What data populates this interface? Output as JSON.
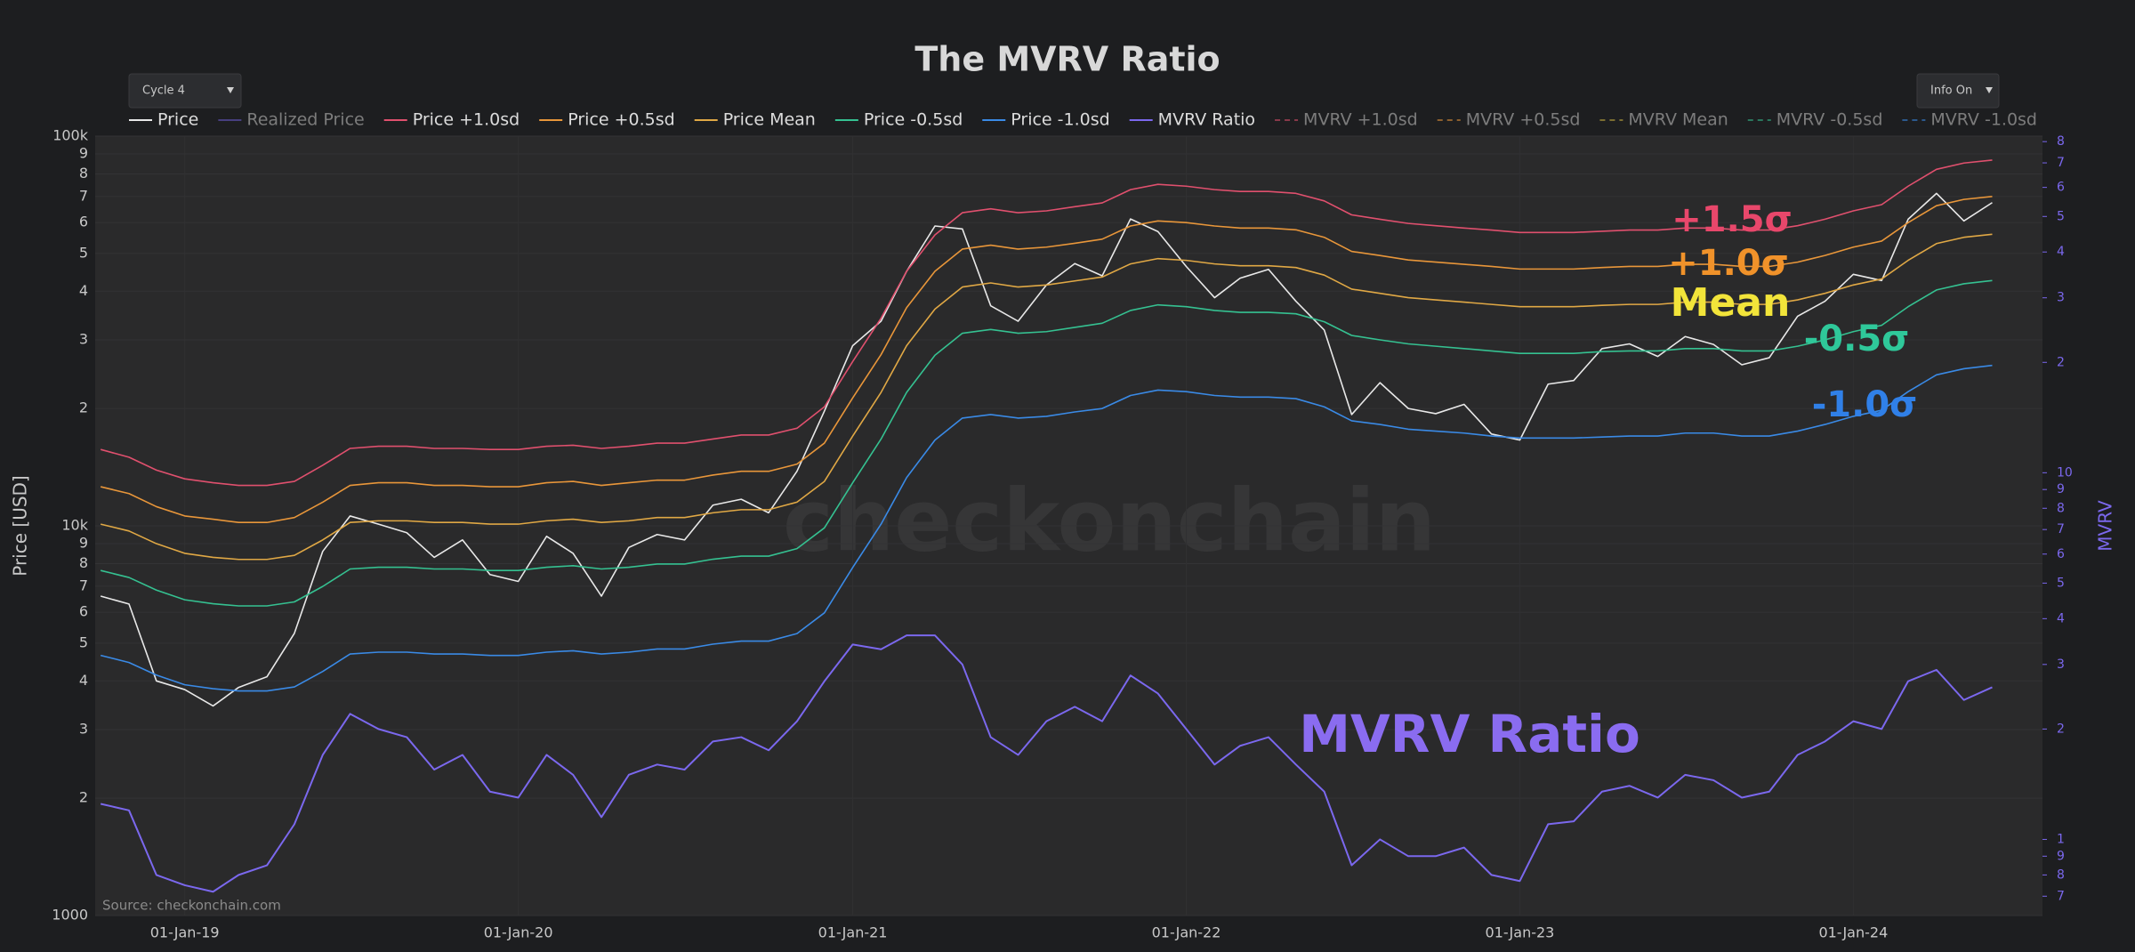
{
  "controls": {
    "cycle": "Cycle 4",
    "info": "Info On"
  },
  "chart_data": {
    "type": "line",
    "title": "The MVRV Ratio",
    "x": [
      "2018-10-01",
      "2018-11-01",
      "2018-12-01",
      "2019-01-01",
      "2019-02-01",
      "2019-03-01",
      "2019-04-01",
      "2019-05-01",
      "2019-06-01",
      "2019-07-01",
      "2019-08-01",
      "2019-09-01",
      "2019-10-01",
      "2019-11-01",
      "2019-12-01",
      "2020-01-01",
      "2020-02-01",
      "2020-03-01",
      "2020-04-01",
      "2020-05-01",
      "2020-06-01",
      "2020-07-01",
      "2020-08-01",
      "2020-09-01",
      "2020-10-01",
      "2020-11-01",
      "2020-12-01",
      "2021-01-01",
      "2021-02-01",
      "2021-03-01",
      "2021-04-01",
      "2021-05-01",
      "2021-06-01",
      "2021-07-01",
      "2021-08-01",
      "2021-09-01",
      "2021-10-01",
      "2021-11-01",
      "2021-12-01",
      "2022-01-01",
      "2022-02-01",
      "2022-03-01",
      "2022-04-01",
      "2022-05-01",
      "2022-06-01",
      "2022-07-01",
      "2022-08-01",
      "2022-09-01",
      "2022-10-01",
      "2022-11-01",
      "2022-12-01",
      "2023-01-01",
      "2023-02-01",
      "2023-03-01",
      "2023-04-01",
      "2023-05-01",
      "2023-06-01",
      "2023-07-01",
      "2023-08-01",
      "2023-09-01",
      "2023-10-01",
      "2023-11-01",
      "2023-12-01",
      "2024-01-01",
      "2024-02-01",
      "2024-03-01",
      "2024-04-01",
      "2024-05-01",
      "2024-06-01"
    ],
    "xlim": [
      "2018-09-25",
      "2024-07-26"
    ],
    "xticks": [
      {
        "value": "2019-01-01",
        "label": "01-Jan-19"
      },
      {
        "value": "2020-01-01",
        "label": "01-Jan-20"
      },
      {
        "value": "2021-01-01",
        "label": "01-Jan-21"
      },
      {
        "value": "2022-01-01",
        "label": "01-Jan-22"
      },
      {
        "value": "2023-01-01",
        "label": "01-Jan-23"
      },
      {
        "value": "2024-01-01",
        "label": "01-Jan-24"
      }
    ],
    "y_label": "Price [USD]",
    "y_scale": "log",
    "ylim": [
      1000,
      100000
    ],
    "yticks": [
      1000,
      {
        "value": 2000,
        "label": "2"
      },
      {
        "value": 3000,
        "label": "3"
      },
      {
        "value": 4000,
        "label": "4"
      },
      {
        "value": 5000,
        "label": "5"
      },
      {
        "value": 6000,
        "label": "6"
      },
      {
        "value": 7000,
        "label": "7"
      },
      {
        "value": 8000,
        "label": "8"
      },
      {
        "value": 9000,
        "label": "9"
      },
      {
        "value": 10000,
        "label": "10k"
      },
      {
        "value": 20000,
        "label": "2"
      },
      {
        "value": 30000,
        "label": "3"
      },
      {
        "value": 40000,
        "label": "4"
      },
      {
        "value": 50000,
        "label": "5"
      },
      {
        "value": 60000,
        "label": "6"
      },
      {
        "value": 70000,
        "label": "7"
      },
      {
        "value": 80000,
        "label": "8"
      },
      {
        "value": 90000,
        "label": "9"
      },
      {
        "value": 100000,
        "label": "100k"
      }
    ],
    "y2_label": "MVRV",
    "y2_scale": "log",
    "y2lim": [
      0.62,
      82.8
    ],
    "y2_color": "#7b68ee",
    "y2ticks": [
      {
        "value": 0.7,
        "label": "7"
      },
      {
        "value": 0.8,
        "label": "8"
      },
      {
        "value": 0.9,
        "label": "9"
      },
      1,
      2,
      3,
      4,
      5,
      6,
      7,
      8,
      9,
      10,
      {
        "value": 20,
        "label": "2"
      },
      {
        "value": 30,
        "label": "3"
      },
      {
        "value": 40,
        "label": "4"
      },
      {
        "value": 50,
        "label": "5"
      },
      {
        "value": 60,
        "label": "6"
      },
      {
        "value": 70,
        "label": "7"
      },
      {
        "value": 80,
        "label": "8"
      }
    ],
    "grid": true,
    "series": [
      {
        "name": "Price",
        "color": "#e8e8e8",
        "values": [
          6600,
          6300,
          4000,
          3800,
          3450,
          3850,
          4100,
          5300,
          8600,
          10600,
          10100,
          9600,
          8300,
          9200,
          7500,
          7200,
          9400,
          8500,
          6600,
          8800,
          9500,
          9200,
          11300,
          11700,
          10800,
          13800,
          19700,
          29000,
          33500,
          45000,
          58800,
          57800,
          36700,
          33500,
          41500,
          47100,
          43800,
          61300,
          56900,
          46300,
          38500,
          43200,
          45500,
          37700,
          31800,
          19300,
          23300,
          20000,
          19400,
          20500,
          17200,
          16600,
          23100,
          23600,
          28500,
          29300,
          27200,
          30600,
          29200,
          25900,
          27000,
          34500,
          37700,
          44200,
          42600,
          61200,
          71300,
          60600,
          67500
        ]
      },
      {
        "name": "Realized Price",
        "color": "#6a5acd",
        "visible": false
      },
      {
        "name": "Price +1.0sd",
        "color": "#e0506e",
        "values": [
          15700,
          15000,
          13900,
          13200,
          12900,
          12700,
          12700,
          13000,
          14300,
          15800,
          16000,
          16000,
          15800,
          15800,
          15700,
          15700,
          16000,
          16100,
          15800,
          16000,
          16300,
          16300,
          16700,
          17100,
          17100,
          17800,
          20200,
          26400,
          34100,
          45000,
          55800,
          63600,
          65100,
          63600,
          64300,
          65900,
          67400,
          72900,
          75200,
          74400,
          72900,
          72100,
          72100,
          71300,
          68200,
          62800,
          61200,
          59700,
          58900,
          58100,
          57400,
          56600,
          56600,
          56600,
          57000,
          57400,
          57400,
          58100,
          58100,
          57400,
          57400,
          58900,
          61200,
          64300,
          66700,
          74400,
          82200,
          85300,
          86800
        ]
      },
      {
        "name": "Price +0.5sd",
        "color": "#e8963a",
        "values": [
          12600,
          12100,
          11200,
          10600,
          10400,
          10200,
          10200,
          10500,
          11500,
          12700,
          12900,
          12900,
          12700,
          12700,
          12600,
          12600,
          12900,
          13000,
          12700,
          12900,
          13100,
          13100,
          13500,
          13800,
          13800,
          14400,
          16300,
          21300,
          27500,
          36300,
          45000,
          51300,
          52500,
          51300,
          51900,
          53100,
          54400,
          58800,
          60600,
          60000,
          58800,
          58100,
          58100,
          57500,
          55000,
          50600,
          49400,
          48100,
          47500,
          46900,
          46300,
          45600,
          45600,
          45600,
          46000,
          46300,
          46300,
          46900,
          46900,
          46300,
          46300,
          47500,
          49400,
          51900,
          53800,
          60000,
          66300,
          68800,
          70000
        ]
      },
      {
        "name": "Price Mean",
        "color": "#e0a845",
        "values": [
          10100,
          9700,
          9000,
          8500,
          8300,
          8200,
          8200,
          8400,
          9200,
          10200,
          10300,
          10300,
          10200,
          10200,
          10100,
          10100,
          10300,
          10400,
          10200,
          10300,
          10500,
          10500,
          10800,
          11000,
          11000,
          11500,
          13000,
          17000,
          22000,
          29000,
          36000,
          41000,
          42000,
          41000,
          41500,
          42500,
          43500,
          47000,
          48500,
          48000,
          47000,
          46500,
          46500,
          46000,
          44000,
          40500,
          39500,
          38500,
          38000,
          37500,
          37000,
          36500,
          36500,
          36500,
          36800,
          37000,
          37000,
          37500,
          37500,
          37000,
          37000,
          38000,
          39500,
          41500,
          43000,
          48000,
          53000,
          55000,
          56000
        ]
      },
      {
        "name": "Price -0.5sd",
        "color": "#35c191",
        "values": [
          7680,
          7370,
          6840,
          6460,
          6310,
          6230,
          6230,
          6380,
          6990,
          7750,
          7830,
          7830,
          7750,
          7750,
          7680,
          7680,
          7830,
          7900,
          7750,
          7830,
          7980,
          7980,
          8210,
          8360,
          8360,
          8740,
          9880,
          12900,
          16700,
          22000,
          27400,
          31200,
          31900,
          31200,
          31500,
          32300,
          33100,
          35700,
          36900,
          36500,
          35700,
          35300,
          35300,
          35000,
          33400,
          30800,
          30000,
          29300,
          28900,
          28500,
          28100,
          27700,
          27700,
          27700,
          28000,
          28100,
          28100,
          28500,
          28500,
          28100,
          28100,
          28900,
          30000,
          31500,
          32700,
          36500,
          40300,
          41800,
          42600
        ]
      },
      {
        "name": "Price -1.0sd",
        "color": "#3a8ae6",
        "values": [
          4650,
          4460,
          4140,
          3910,
          3820,
          3770,
          3770,
          3860,
          4230,
          4690,
          4740,
          4740,
          4690,
          4690,
          4650,
          4650,
          4740,
          4780,
          4690,
          4740,
          4830,
          4830,
          4970,
          5060,
          5060,
          5290,
          5980,
          7820,
          10100,
          13300,
          16600,
          18900,
          19300,
          18900,
          19100,
          19600,
          20000,
          21600,
          22300,
          22100,
          21600,
          21400,
          21400,
          21200,
          20200,
          18600,
          18200,
          17700,
          17500,
          17300,
          17000,
          16800,
          16800,
          16800,
          16900,
          17000,
          17000,
          17300,
          17300,
          17000,
          17000,
          17500,
          18200,
          19100,
          19800,
          22100,
          24400,
          25300,
          25800
        ]
      },
      {
        "name": "MVRV Ratio",
        "color": "#7b68ee",
        "axis": "y2",
        "values": [
          1.25,
          1.2,
          0.8,
          0.75,
          0.72,
          0.8,
          0.85,
          1.1,
          1.7,
          2.2,
          2.0,
          1.9,
          1.55,
          1.7,
          1.35,
          1.3,
          1.7,
          1.5,
          1.15,
          1.5,
          1.6,
          1.55,
          1.85,
          1.9,
          1.75,
          2.1,
          2.7,
          3.4,
          3.3,
          3.6,
          3.6,
          3.0,
          1.9,
          1.7,
          2.1,
          2.3,
          2.1,
          2.8,
          2.5,
          2.0,
          1.6,
          1.8,
          1.9,
          1.6,
          1.35,
          0.85,
          1.0,
          0.9,
          0.9,
          0.95,
          0.8,
          0.77,
          1.1,
          1.12,
          1.35,
          1.4,
          1.3,
          1.5,
          1.45,
          1.3,
          1.35,
          1.7,
          1.85,
          2.1,
          2.0,
          2.7,
          2.9,
          2.4,
          2.6
        ]
      },
      {
        "name": "MVRV +1.0sd",
        "color": "#e0506e",
        "dash": true,
        "visible": false
      },
      {
        "name": "MVRV +0.5sd",
        "color": "#e8963a",
        "dash": true,
        "visible": false
      },
      {
        "name": "MVRV Mean",
        "color": "#c8b040",
        "dash": true,
        "visible": false
      },
      {
        "name": "MVRV -0.5sd",
        "color": "#35c191",
        "dash": true,
        "visible": false
      },
      {
        "name": "MVRV -1.0sd",
        "color": "#3a8ae6",
        "dash": true,
        "visible": false
      }
    ],
    "annotations": {
      "plus_15": "+1.5σ",
      "plus_10": "+1.0σ",
      "mean": "Mean",
      "minus_05": "-0.5σ",
      "minus_10": "-1.0σ",
      "mvrv": "MVRV Ratio",
      "watermark": "checkonchain",
      "source": "Source: checkonchain.com"
    }
  }
}
